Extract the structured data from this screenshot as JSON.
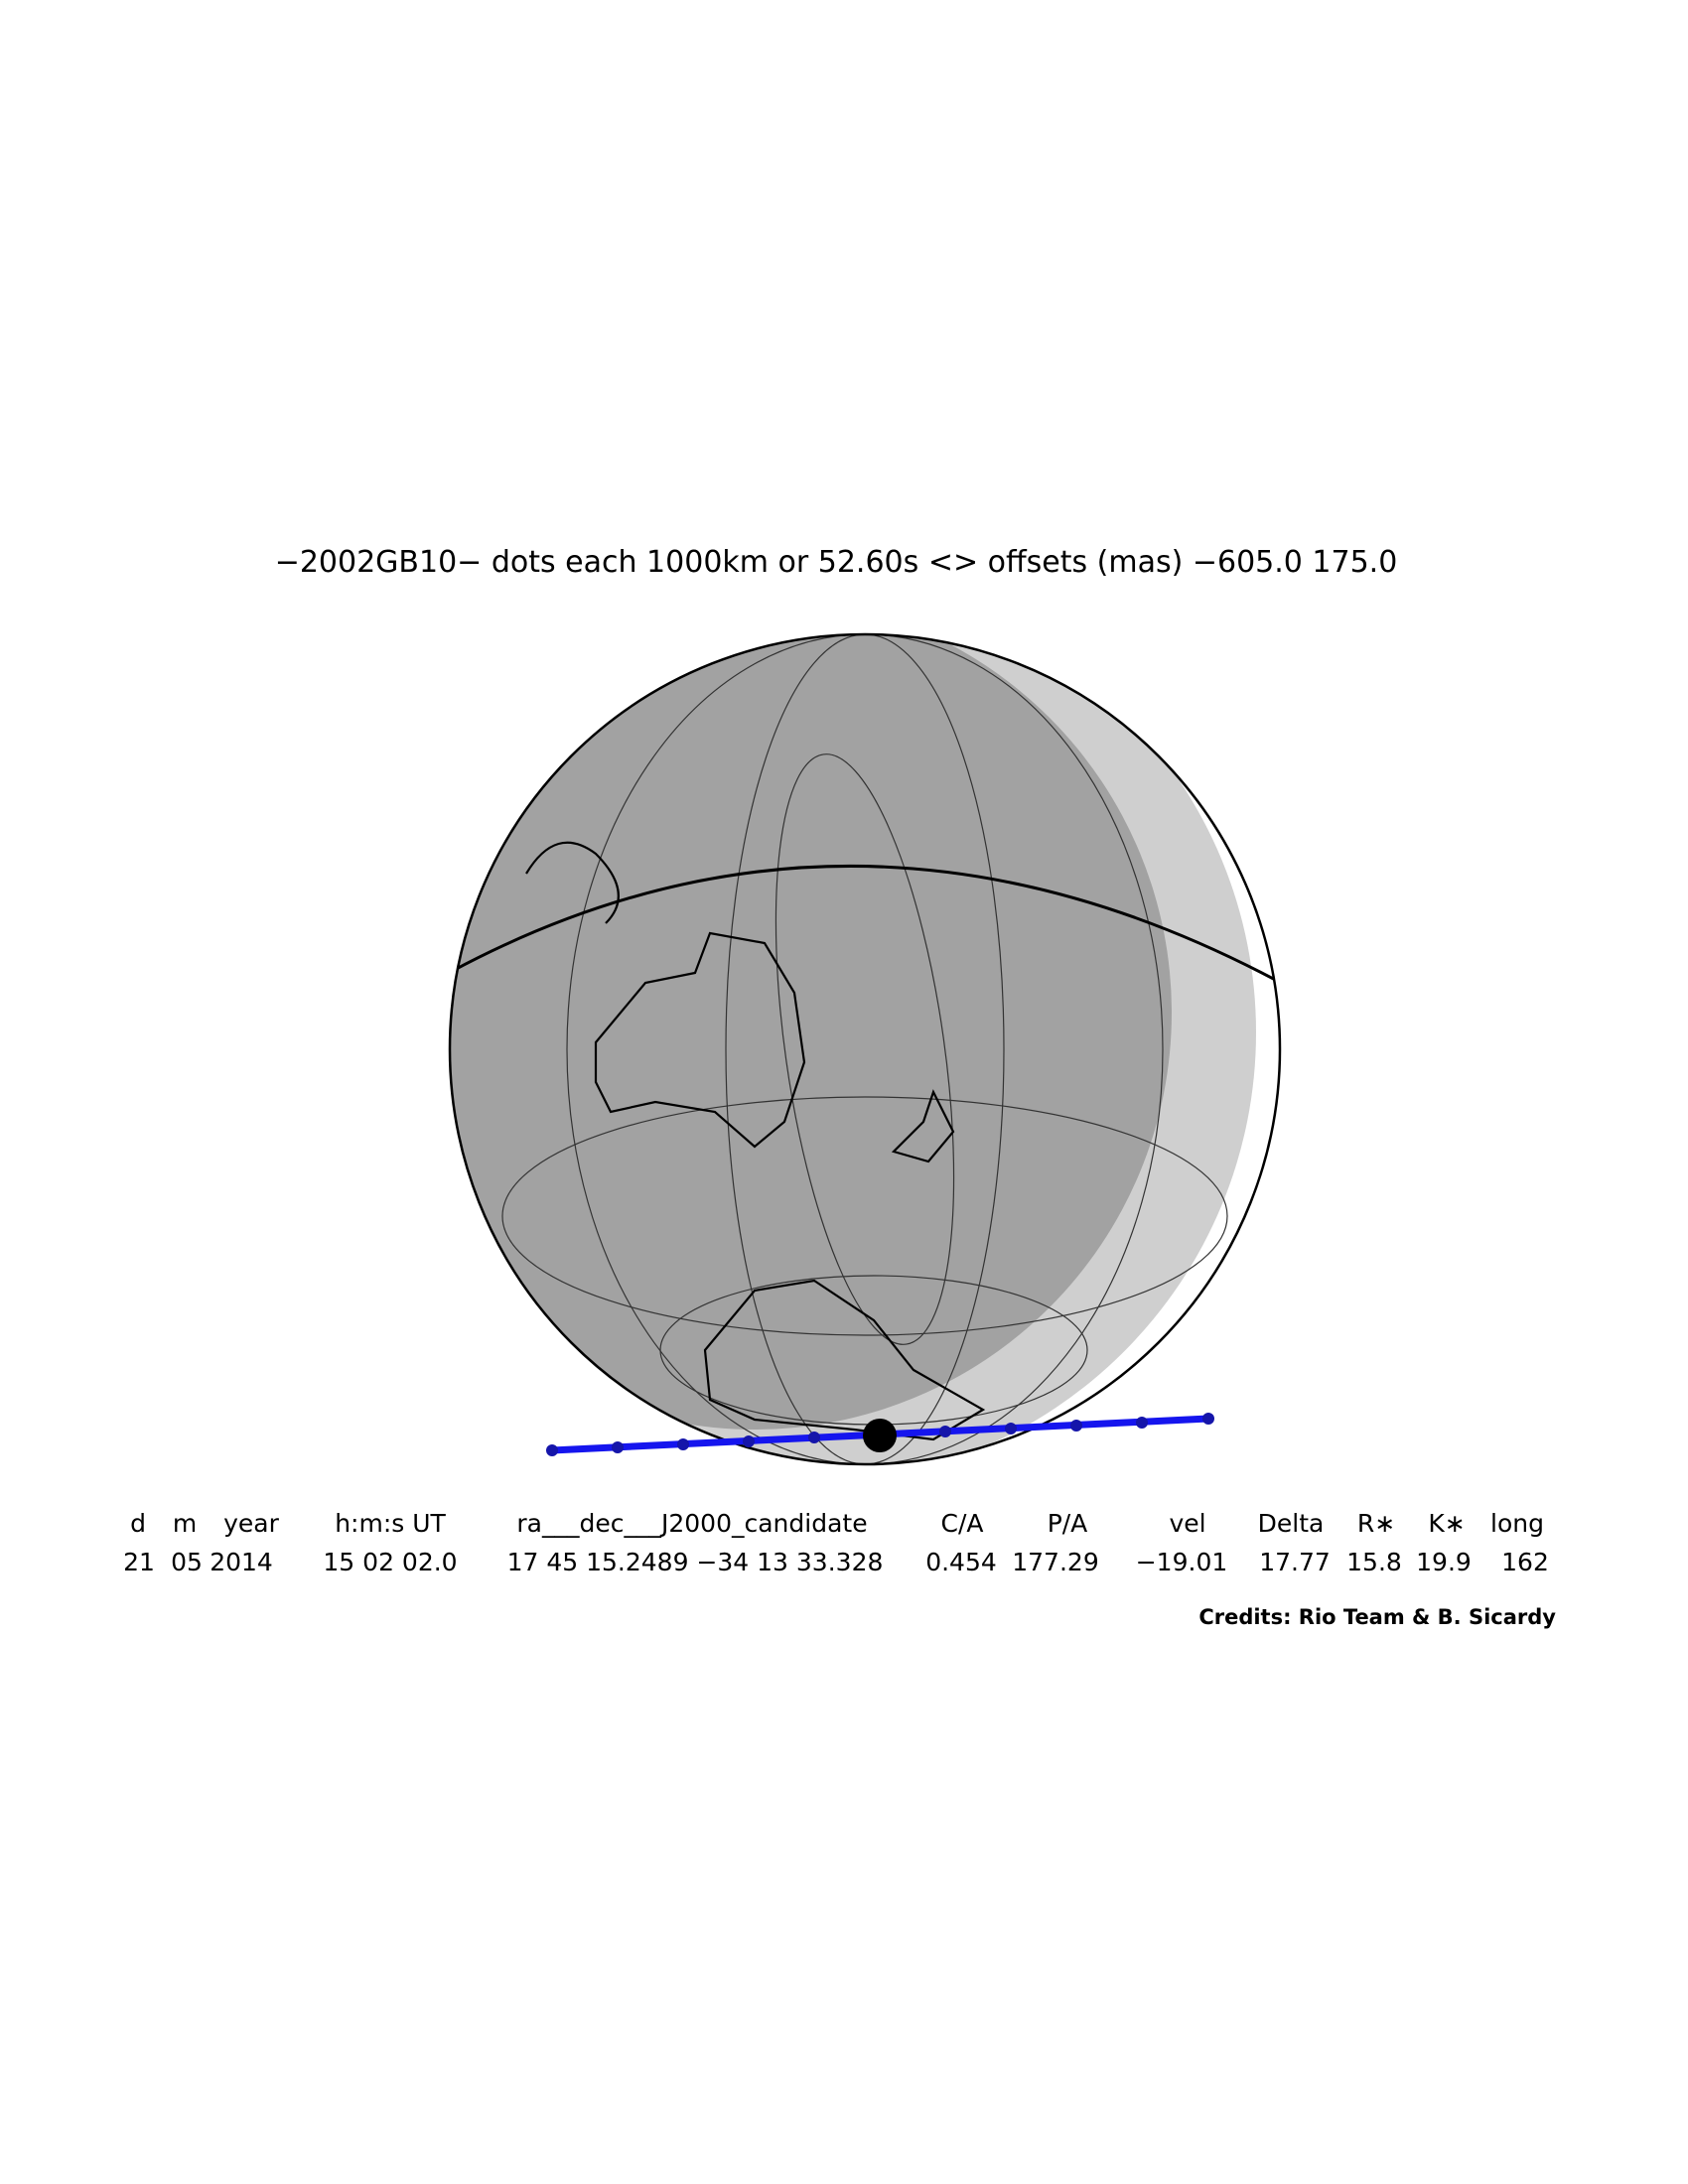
{
  "title": "−2002GB10− dots each 1000km or 52.60s <> offsets (mas) −605.0   175.0",
  "table": {
    "header": [
      "d",
      "m",
      "year",
      "h:m:s UT",
      "ra___dec___J2000_candidate",
      "C/A",
      "P/A",
      "vel",
      "Delta",
      "R∗",
      "K∗",
      "long"
    ],
    "rows": [
      [
        "21",
        "05",
        "2014",
        "15 02 02.0",
        "17 45 15.2489 −34 13 33.328",
        "0.454",
        "177.29",
        "−19.01",
        "17.77",
        "15.8",
        "19.9",
        "162"
      ]
    ]
  },
  "credits": "Credits: Rio Team & B. Sicardy"
}
